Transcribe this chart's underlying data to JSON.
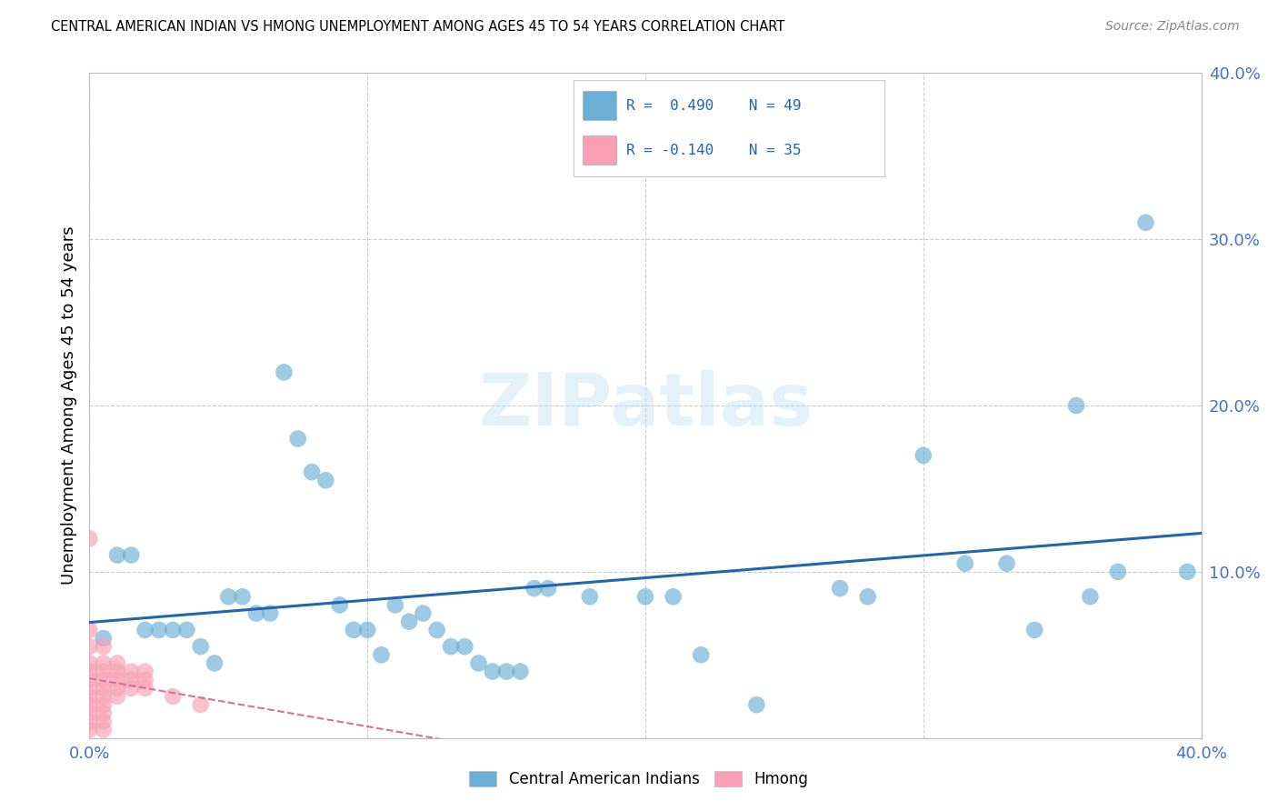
{
  "title": "CENTRAL AMERICAN INDIAN VS HMONG UNEMPLOYMENT AMONG AGES 45 TO 54 YEARS CORRELATION CHART",
  "source": "Source: ZipAtlas.com",
  "ylabel": "Unemployment Among Ages 45 to 54 years",
  "xlim": [
    0.0,
    0.4
  ],
  "ylim": [
    0.0,
    0.4
  ],
  "xticks": [
    0.0,
    0.1,
    0.2,
    0.3,
    0.4
  ],
  "yticks": [
    0.0,
    0.1,
    0.2,
    0.3,
    0.4
  ],
  "xtick_labels": [
    "0.0%",
    "",
    "",
    "",
    "40.0%"
  ],
  "ytick_labels": [
    "0.0%",
    "10.0%",
    "20.0%",
    "30.0%",
    "40.0%"
  ],
  "legend_entries": [
    "Central American Indians",
    "Hmong"
  ],
  "R_blue": 0.49,
  "N_blue": 49,
  "R_pink": -0.14,
  "N_pink": 35,
  "blue_color": "#6baed6",
  "pink_color": "#fa9fb5",
  "line_blue": "#2166ac",
  "line_pink": "#d4719a",
  "tick_color": "#4472c4",
  "watermark_text": "ZIPatlas",
  "blue_points": [
    [
      0.005,
      0.06
    ],
    [
      0.01,
      0.11
    ],
    [
      0.015,
      0.11
    ],
    [
      0.02,
      0.065
    ],
    [
      0.025,
      0.065
    ],
    [
      0.03,
      0.065
    ],
    [
      0.035,
      0.065
    ],
    [
      0.04,
      0.055
    ],
    [
      0.045,
      0.045
    ],
    [
      0.05,
      0.085
    ],
    [
      0.055,
      0.085
    ],
    [
      0.06,
      0.075
    ],
    [
      0.065,
      0.075
    ],
    [
      0.07,
      0.22
    ],
    [
      0.075,
      0.18
    ],
    [
      0.08,
      0.16
    ],
    [
      0.085,
      0.155
    ],
    [
      0.09,
      0.08
    ],
    [
      0.095,
      0.065
    ],
    [
      0.1,
      0.065
    ],
    [
      0.105,
      0.05
    ],
    [
      0.11,
      0.08
    ],
    [
      0.115,
      0.07
    ],
    [
      0.12,
      0.075
    ],
    [
      0.125,
      0.065
    ],
    [
      0.13,
      0.055
    ],
    [
      0.135,
      0.055
    ],
    [
      0.14,
      0.045
    ],
    [
      0.145,
      0.04
    ],
    [
      0.15,
      0.04
    ],
    [
      0.155,
      0.04
    ],
    [
      0.16,
      0.09
    ],
    [
      0.165,
      0.09
    ],
    [
      0.18,
      0.085
    ],
    [
      0.2,
      0.085
    ],
    [
      0.21,
      0.085
    ],
    [
      0.22,
      0.05
    ],
    [
      0.24,
      0.02
    ],
    [
      0.27,
      0.09
    ],
    [
      0.28,
      0.085
    ],
    [
      0.3,
      0.17
    ],
    [
      0.315,
      0.105
    ],
    [
      0.33,
      0.105
    ],
    [
      0.34,
      0.065
    ],
    [
      0.355,
      0.2
    ],
    [
      0.36,
      0.085
    ],
    [
      0.37,
      0.1
    ],
    [
      0.38,
      0.31
    ],
    [
      0.395,
      0.1
    ]
  ],
  "pink_points": [
    [
      0.0,
      0.12
    ],
    [
      0.0,
      0.065
    ],
    [
      0.0,
      0.055
    ],
    [
      0.0,
      0.045
    ],
    [
      0.0,
      0.04
    ],
    [
      0.0,
      0.035
    ],
    [
      0.0,
      0.03
    ],
    [
      0.0,
      0.025
    ],
    [
      0.0,
      0.02
    ],
    [
      0.0,
      0.015
    ],
    [
      0.0,
      0.01
    ],
    [
      0.0,
      0.005
    ],
    [
      0.005,
      0.055
    ],
    [
      0.005,
      0.045
    ],
    [
      0.005,
      0.04
    ],
    [
      0.005,
      0.035
    ],
    [
      0.005,
      0.03
    ],
    [
      0.005,
      0.025
    ],
    [
      0.005,
      0.02
    ],
    [
      0.005,
      0.015
    ],
    [
      0.005,
      0.01
    ],
    [
      0.005,
      0.005
    ],
    [
      0.01,
      0.045
    ],
    [
      0.01,
      0.04
    ],
    [
      0.01,
      0.035
    ],
    [
      0.01,
      0.03
    ],
    [
      0.01,
      0.025
    ],
    [
      0.015,
      0.04
    ],
    [
      0.015,
      0.035
    ],
    [
      0.015,
      0.03
    ],
    [
      0.02,
      0.04
    ],
    [
      0.02,
      0.035
    ],
    [
      0.02,
      0.03
    ],
    [
      0.03,
      0.025
    ],
    [
      0.04,
      0.02
    ]
  ]
}
